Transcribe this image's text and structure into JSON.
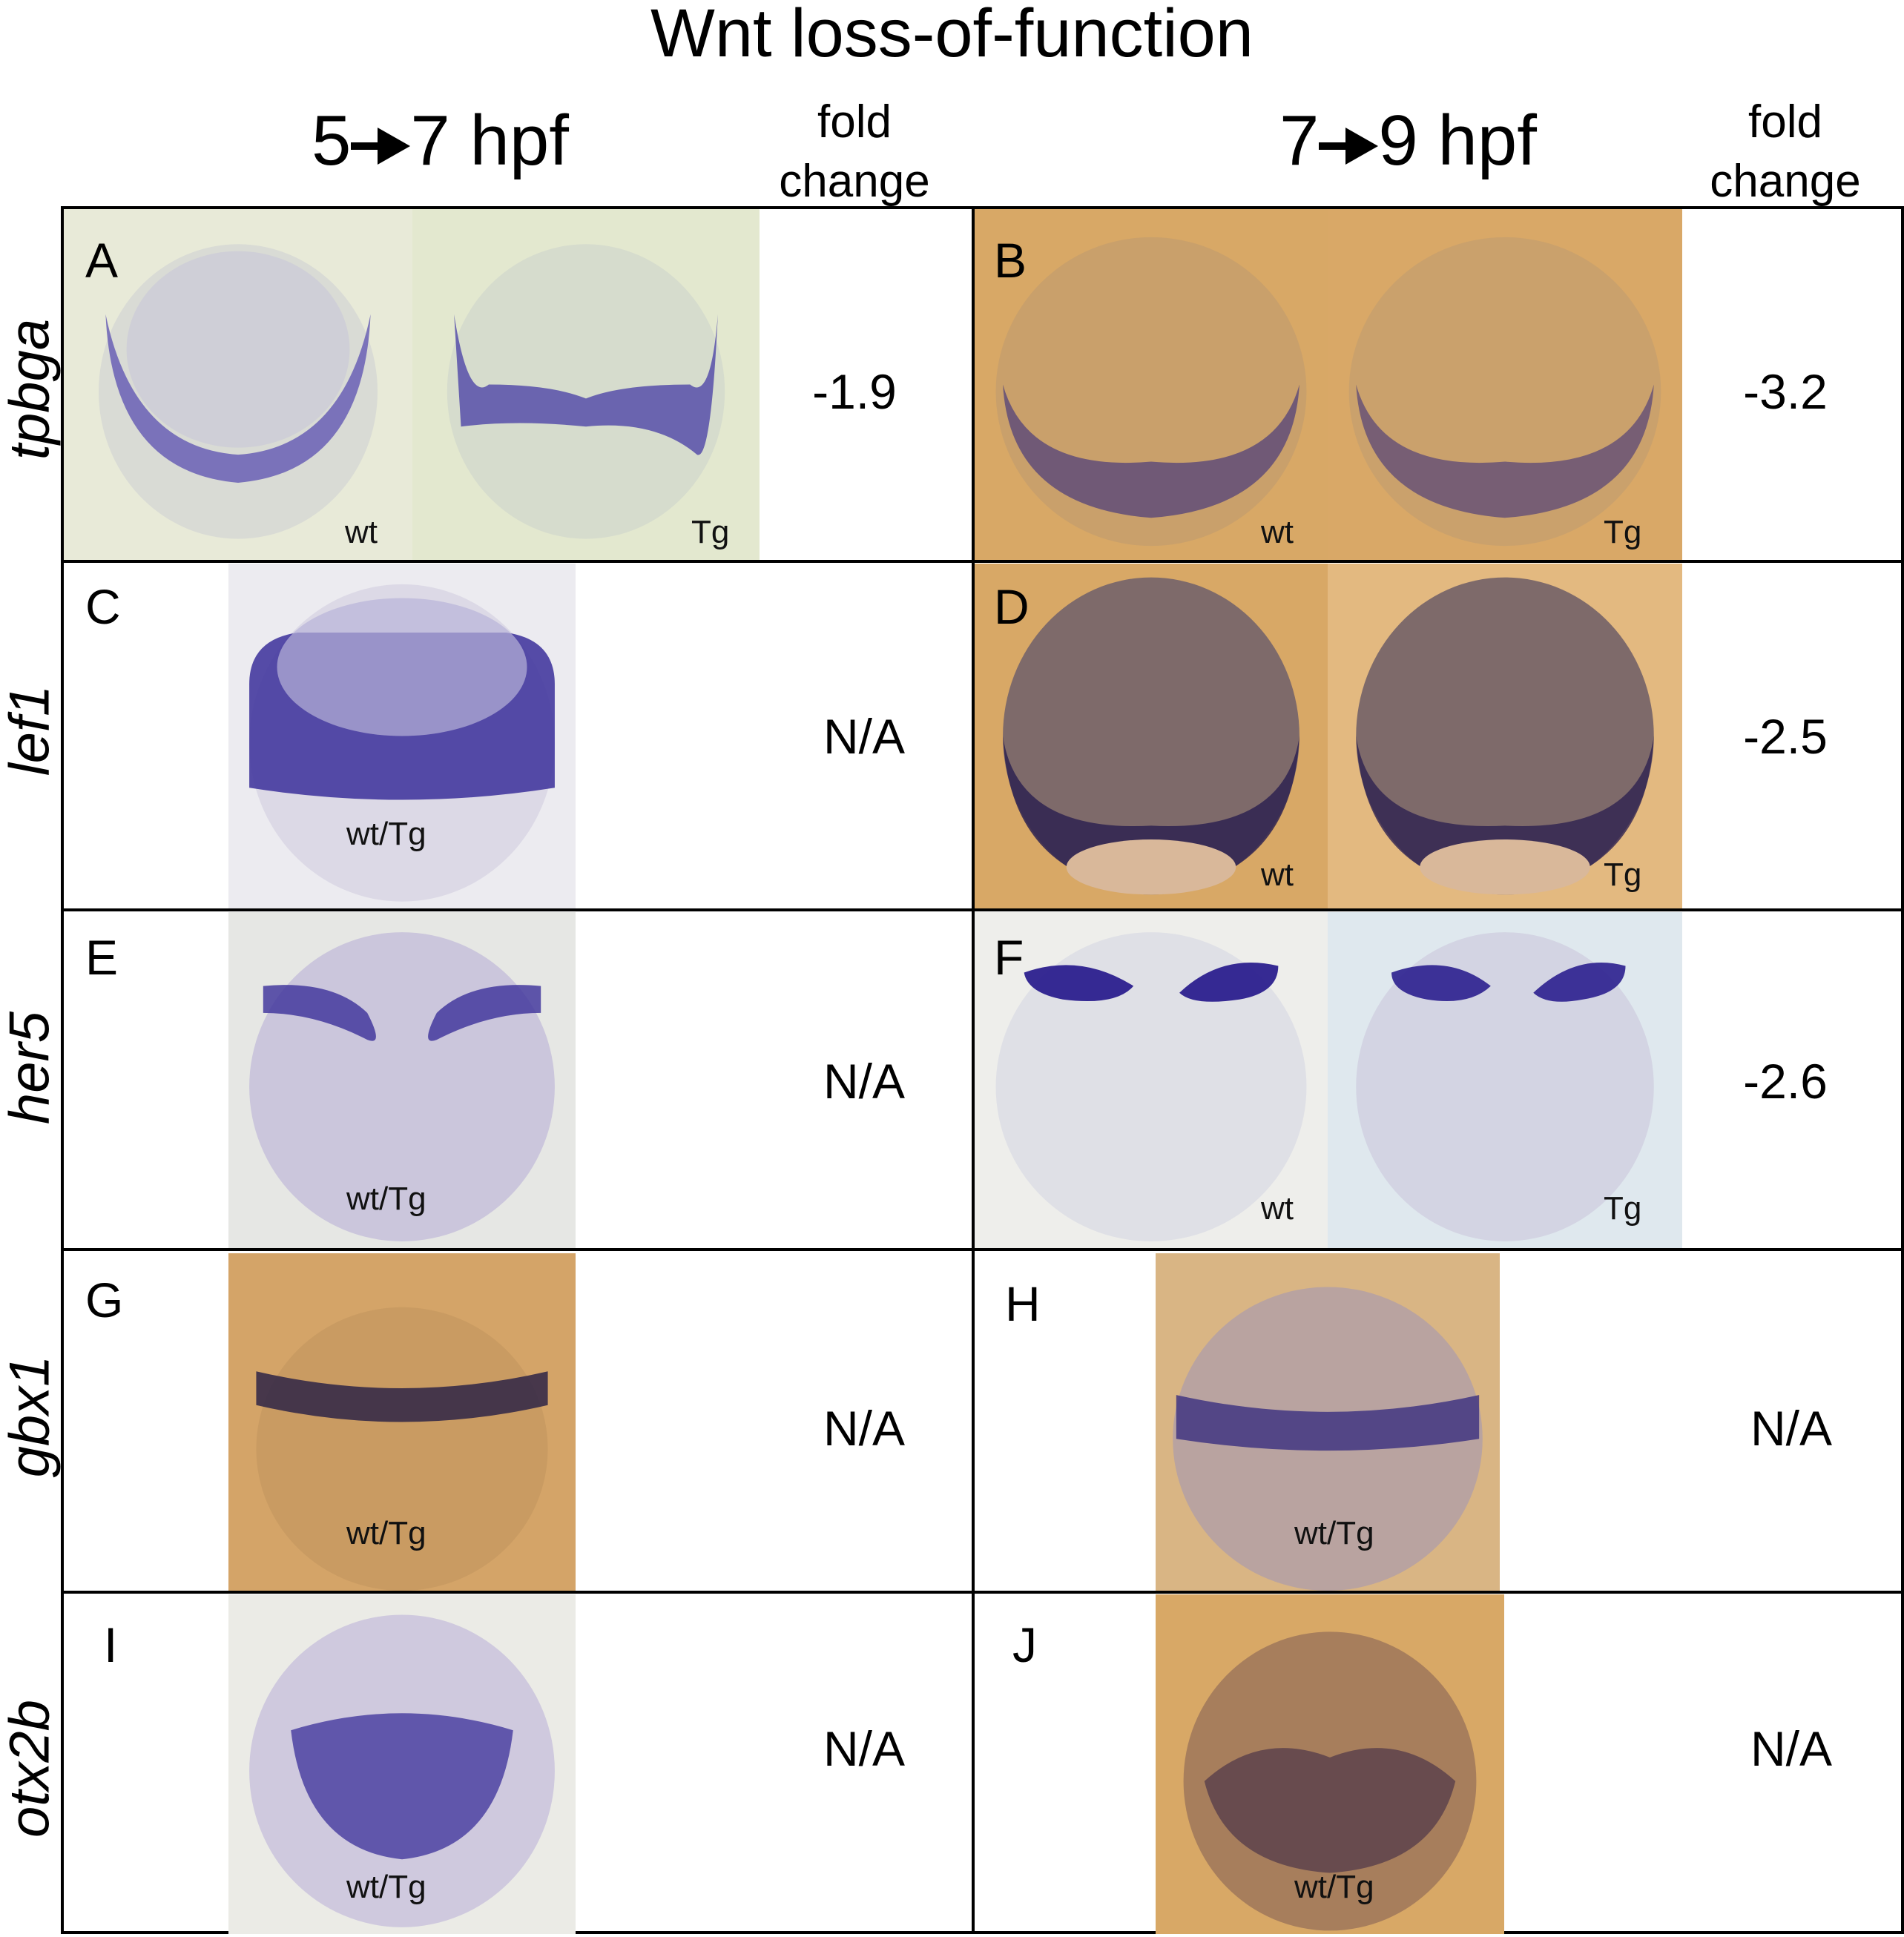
{
  "title": "Wnt loss-of-function",
  "columns": [
    {
      "header_left": "5",
      "header_right": "7 hpf"
    },
    {
      "header_left": "7",
      "header_right": "9 hpf"
    }
  ],
  "fold_header": [
    "fold",
    "change"
  ],
  "rows": [
    {
      "gene": "tpbga",
      "left": {
        "letter": "A",
        "labels": [
          "wt",
          "Tg"
        ],
        "fold": "-1.9"
      },
      "right": {
        "letter": "B",
        "labels": [
          "wt",
          "Tg"
        ],
        "fold": "-3.2"
      }
    },
    {
      "gene": "lef1",
      "left": {
        "letter": "C",
        "labels": [
          "wt/Tg"
        ],
        "fold": "N/A"
      },
      "right": {
        "letter": "D",
        "labels": [
          "wt",
          "Tg"
        ],
        "fold": "-2.5"
      }
    },
    {
      "gene": "her5",
      "left": {
        "letter": "E",
        "labels": [
          "wt/Tg"
        ],
        "fold": "N/A"
      },
      "right": {
        "letter": "F",
        "labels": [
          "wt",
          "Tg"
        ],
        "fold": "-2.6"
      }
    },
    {
      "gene": "gbx1",
      "left": {
        "letter": "G",
        "labels": [
          "wt/Tg"
        ],
        "fold": "N/A"
      },
      "right": {
        "letter": "H",
        "labels": [
          "wt/Tg"
        ],
        "fold": "N/A"
      }
    },
    {
      "gene": "otx2b",
      "left": {
        "letter": "I",
        "labels": [
          "wt/Tg"
        ],
        "fold": "N/A"
      },
      "right": {
        "letter": "J",
        "labels": [
          "wt/Tg"
        ],
        "fold": "N/A"
      }
    }
  ],
  "colors": {
    "stain": "#3b2f9a",
    "pale_bg": "#e8ead8",
    "tan_bg": "#d4a468",
    "blue_bg": "#dfe8ee"
  }
}
